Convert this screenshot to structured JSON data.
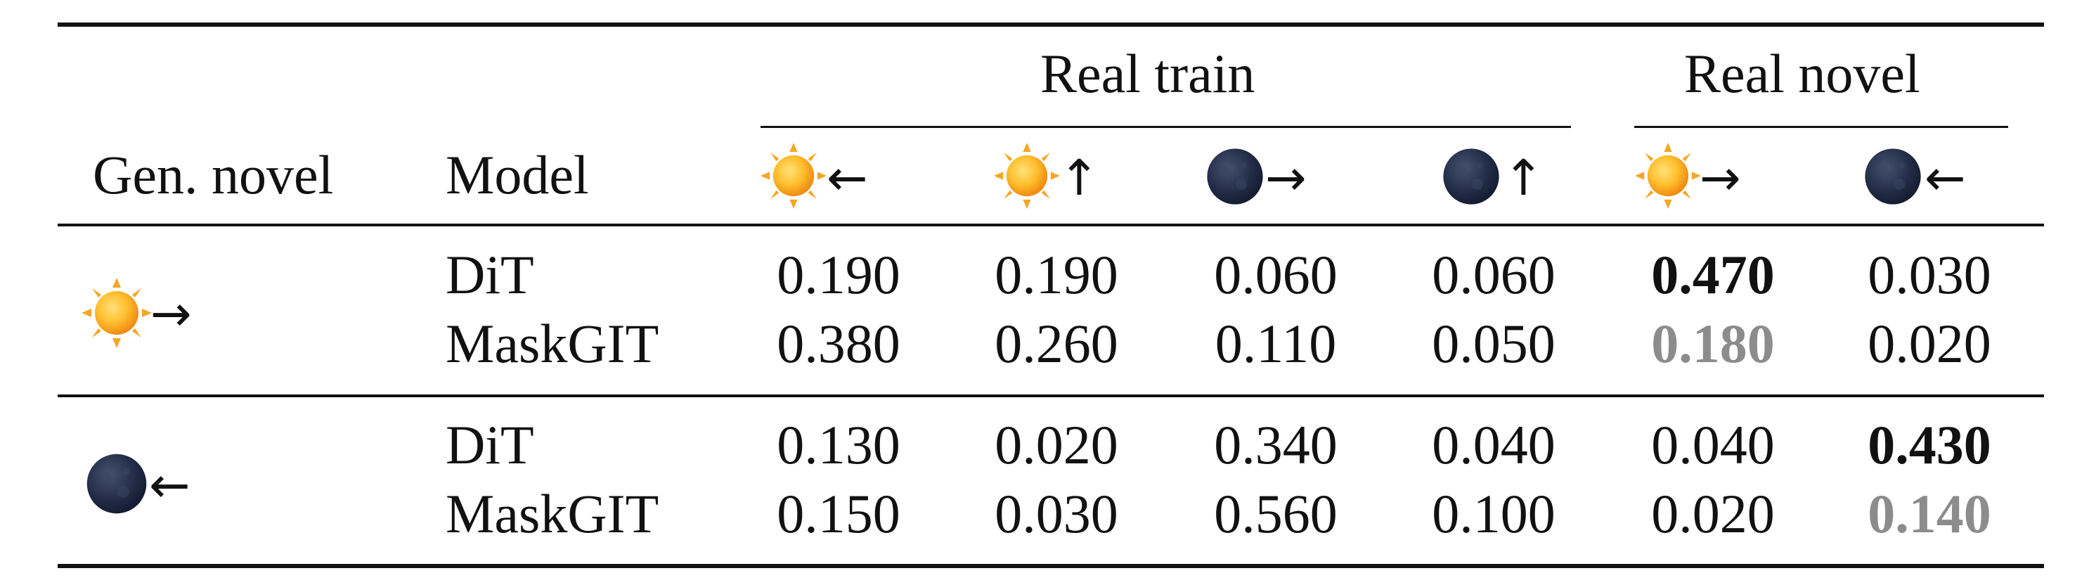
{
  "table": {
    "group_headers": {
      "real_train": "Real train",
      "real_novel": "Real novel"
    },
    "columns": {
      "gen_novel": "Gen. novel",
      "model": "Model",
      "conditions": [
        {
          "icon": "sun-icon",
          "arrow": "←"
        },
        {
          "icon": "sun-icon",
          "arrow": "↑"
        },
        {
          "icon": "moon-icon",
          "arrow": "→"
        },
        {
          "icon": "moon-icon",
          "arrow": "↑"
        },
        {
          "icon": "sun-icon",
          "arrow": "→"
        },
        {
          "icon": "moon-icon",
          "arrow": "←"
        }
      ]
    },
    "groups": [
      {
        "gen_novel": {
          "icon": "sun-icon",
          "arrow": "→"
        },
        "rows": [
          {
            "model": "DiT",
            "values": [
              "0.190",
              "0.190",
              "0.060",
              "0.060",
              "0.470",
              "0.030"
            ],
            "styles": [
              "",
              "",
              "",
              "",
              "bold",
              ""
            ]
          },
          {
            "model": "MaskGIT",
            "values": [
              "0.380",
              "0.260",
              "0.110",
              "0.050",
              "0.180",
              "0.020"
            ],
            "styles": [
              "",
              "",
              "",
              "",
              "gray",
              ""
            ]
          }
        ]
      },
      {
        "gen_novel": {
          "icon": "moon-icon",
          "arrow": "←"
        },
        "rows": [
          {
            "model": "DiT",
            "values": [
              "0.130",
              "0.020",
              "0.340",
              "0.040",
              "0.040",
              "0.430"
            ],
            "styles": [
              "",
              "",
              "",
              "",
              "",
              "bold"
            ]
          },
          {
            "model": "MaskGIT",
            "values": [
              "0.150",
              "0.030",
              "0.560",
              "0.100",
              "0.020",
              "0.140"
            ],
            "styles": [
              "",
              "",
              "",
              "",
              "",
              "gray"
            ]
          }
        ]
      }
    ],
    "colors": {
      "text": "#111111",
      "second_best": "#8c8c8c",
      "sun": "#f5a623",
      "moon": "#1f2a44"
    }
  }
}
